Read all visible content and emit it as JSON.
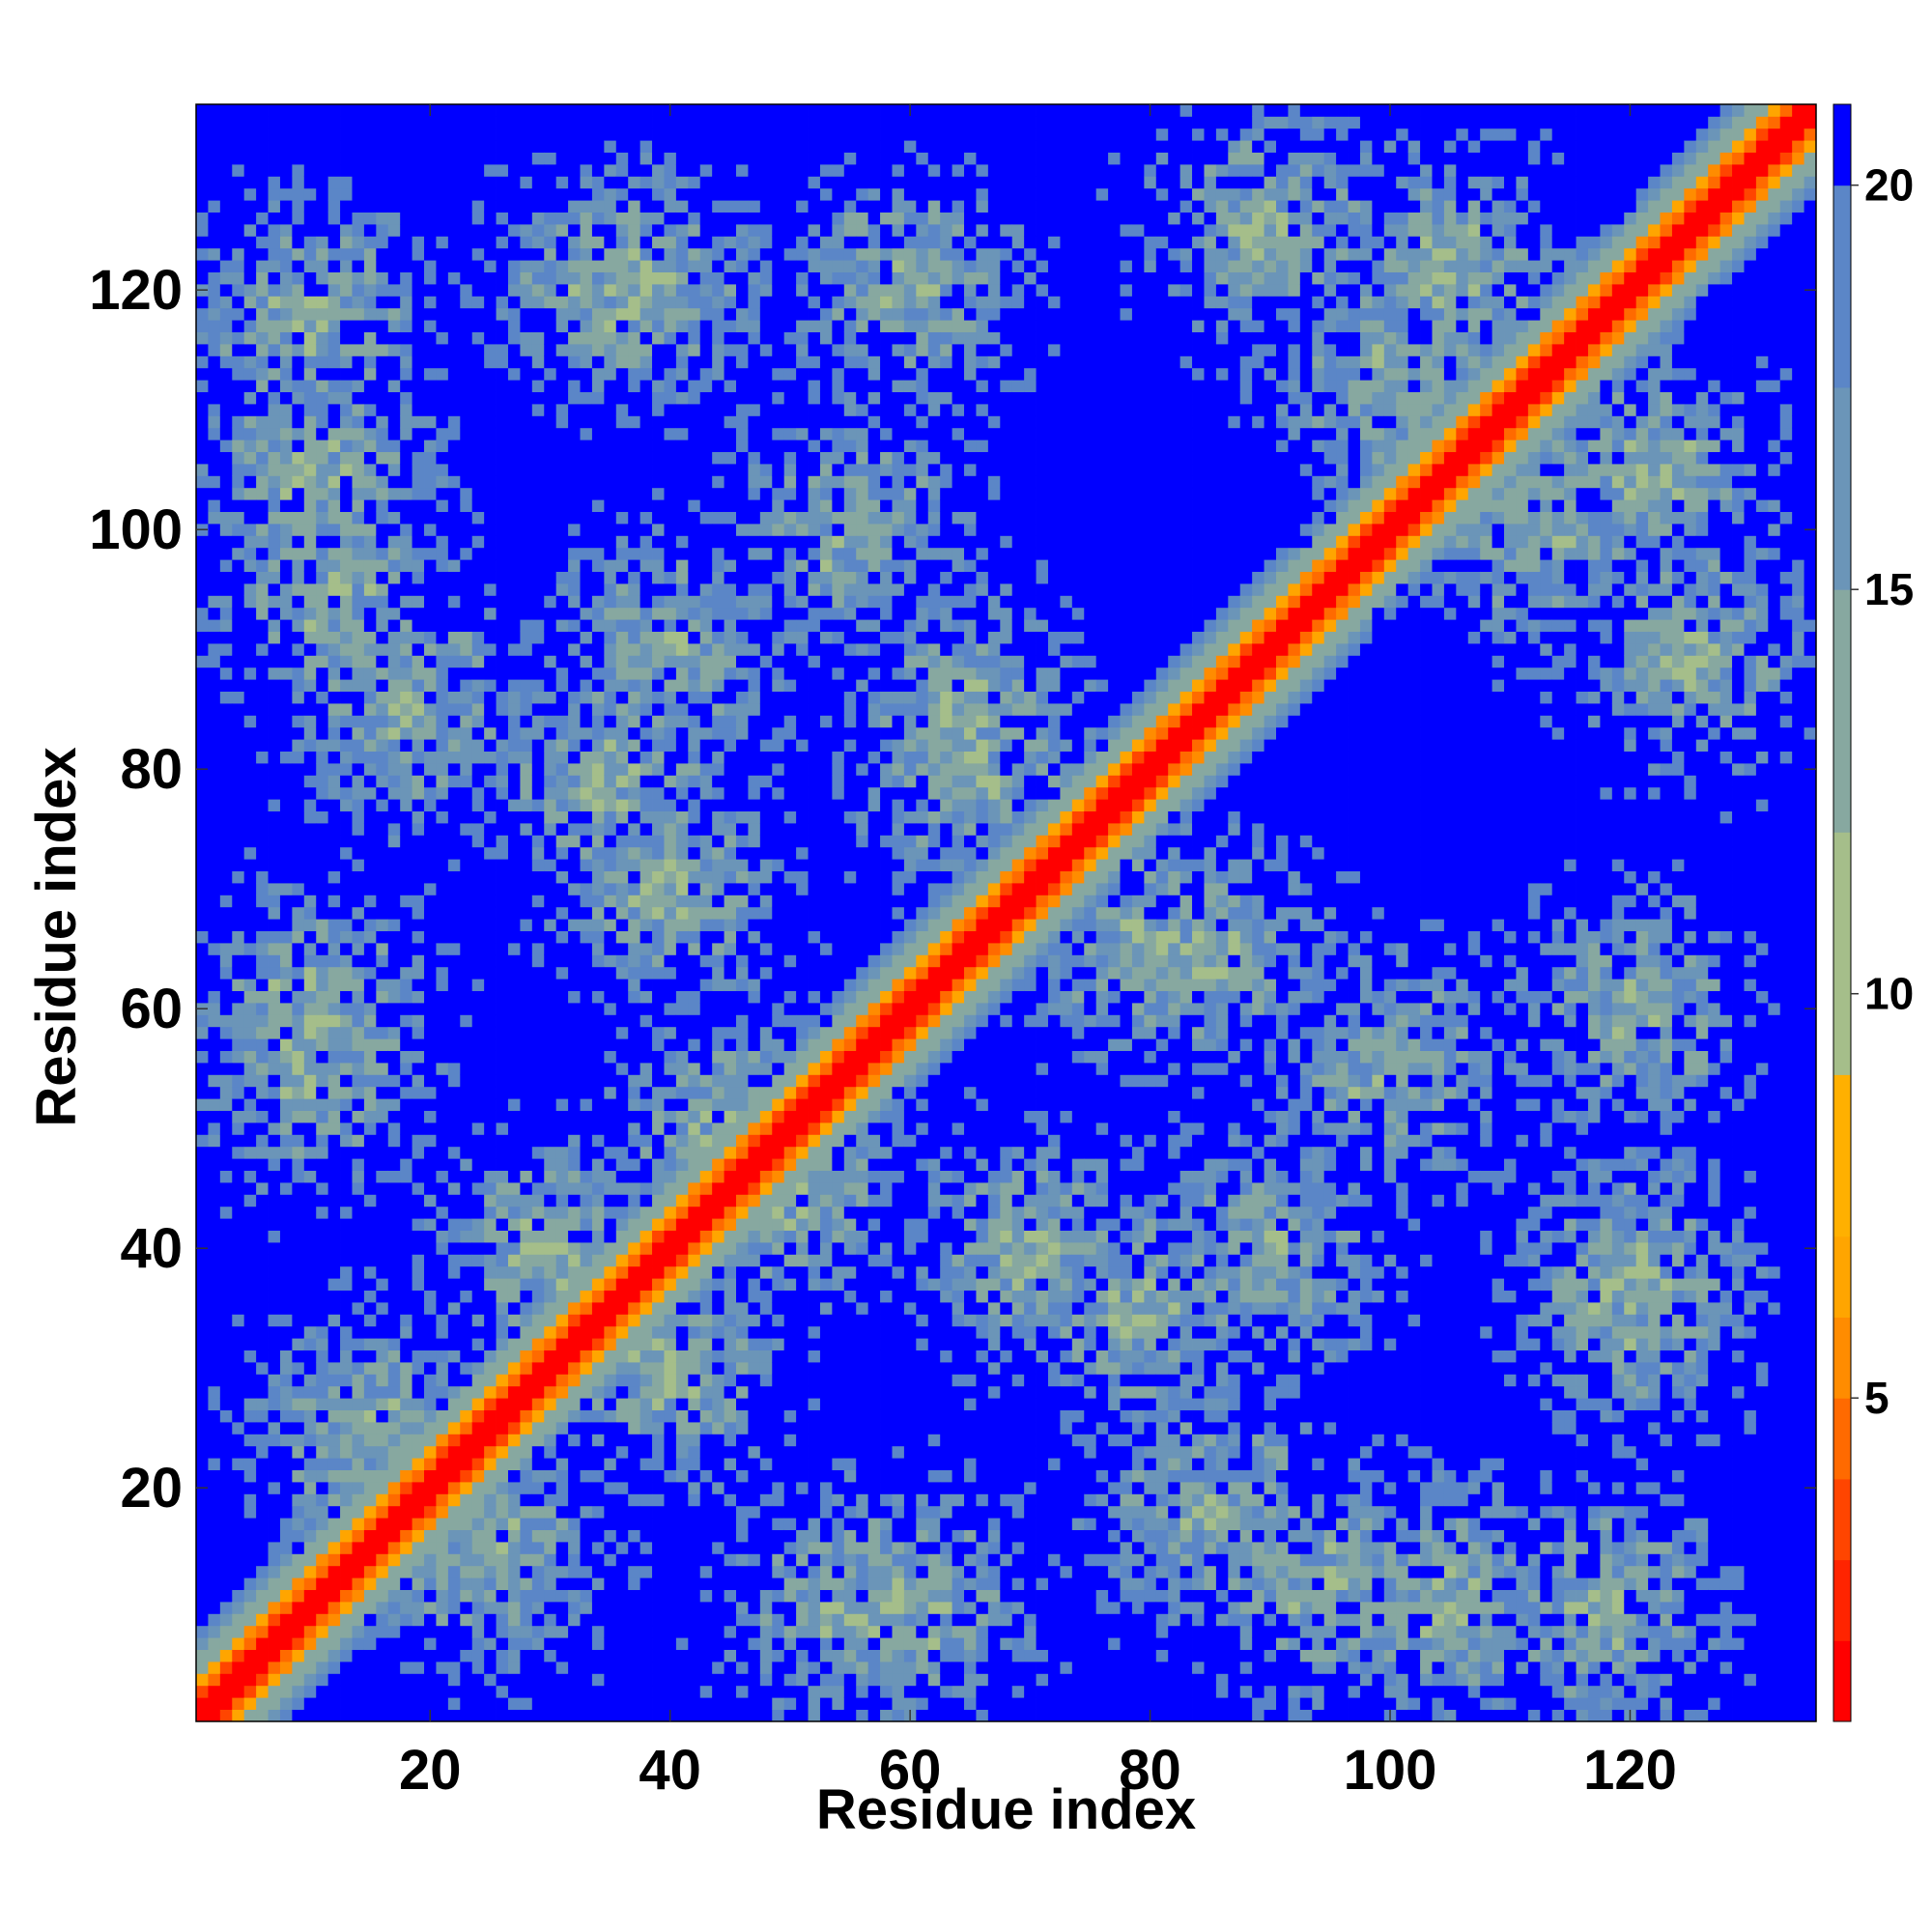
{
  "chart_data": {
    "type": "heatmap",
    "title": "",
    "xlabel": "Residue index",
    "ylabel": "Residue index",
    "n_residues": 135,
    "xlim": [
      1,
      135
    ],
    "ylim": [
      1,
      135
    ],
    "xticks": [
      20,
      40,
      60,
      80,
      100,
      120
    ],
    "yticks": [
      20,
      40,
      60,
      80,
      100,
      120
    ],
    "colorbar": {
      "range": [
        1,
        21
      ],
      "ticks": [
        5,
        10,
        15,
        20
      ],
      "levels": [
        {
          "max": 2,
          "color": "#ff0000"
        },
        {
          "max": 3,
          "color": "#ff2400"
        },
        {
          "max": 4,
          "color": "#ff4500"
        },
        {
          "max": 5,
          "color": "#ff6a00"
        },
        {
          "max": 6,
          "color": "#ff8c00"
        },
        {
          "max": 7,
          "color": "#ffa500"
        },
        {
          "max": 9,
          "color": "#ffb000"
        },
        {
          "max": 12,
          "color": "#a5be8a"
        },
        {
          "max": 15,
          "color": "#87a8a0"
        },
        {
          "max": 17.5,
          "color": "#6b95b8"
        },
        {
          "max": 20,
          "color": "#5b86c7"
        },
        {
          "max": 99,
          "color": "#0000ff"
        }
      ]
    },
    "structure": {
      "diagonal": "main diagonal band of small values (red near diagonal, orange, then green-blue)",
      "blocks": "alternating off-diagonal contact patches of values 8-20 in a checkerboard pattern, blue (>20) elsewhere",
      "block_centers": [
        [
          10,
          118
        ],
        [
          38,
          120
        ],
        [
          105,
          122
        ],
        [
          12,
          95
        ],
        [
          35,
          80
        ],
        [
          55,
          100
        ],
        [
          80,
          65
        ],
        [
          100,
          55
        ],
        [
          112,
          100
        ],
        [
          125,
          90
        ],
        [
          10,
          55
        ],
        [
          25,
          15
        ],
        [
          40,
          30
        ],
        [
          60,
          10
        ],
        [
          85,
          18
        ],
        [
          105,
          10
        ],
        [
          120,
          35
        ],
        [
          50,
          45
        ],
        [
          70,
          40
        ],
        [
          65,
          85
        ],
        [
          90,
          40
        ],
        [
          120,
          60
        ]
      ]
    }
  }
}
